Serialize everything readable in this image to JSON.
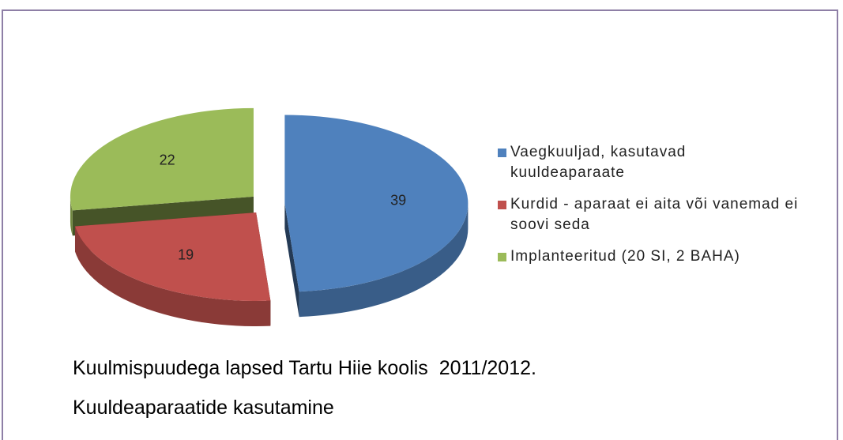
{
  "chart_data": {
    "type": "pie",
    "categories": [
      "Vaegkuuljad, kasutavad kuuldeaparaate",
      "Kurdid - aparaat ei aita või vanemad ei soovi seda",
      "Implanteeritud (20 SI, 2 BAHA)"
    ],
    "values": [
      39,
      19,
      22
    ],
    "colors": [
      "#4f81bd",
      "#c0504d",
      "#9bbb59"
    ],
    "title": "Kuulmispuudega lapsed Tartu Hiie koolis  2011/2012.",
    "subtitle": "Kuuldeaparaatide kasutamine",
    "legend": "right"
  }
}
